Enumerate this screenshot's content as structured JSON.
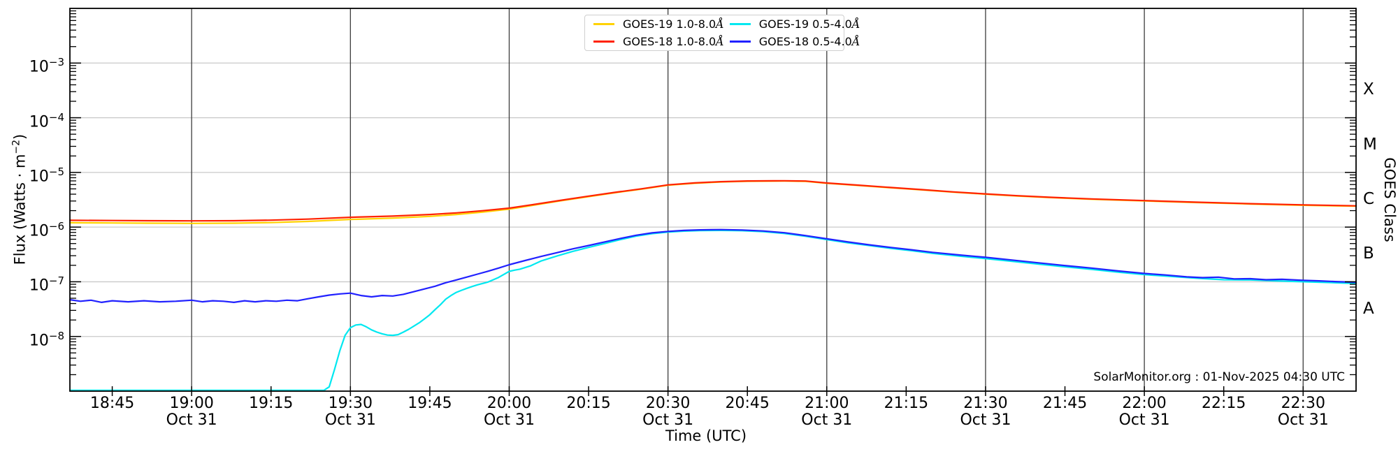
{
  "annotation": "SolarMonitor.org : 01-Nov-2025 04:30 UTC",
  "axes": {
    "xlabel": "Time (UTC)",
    "ylabel_left": {
      "pre": "Flux (Watts · m",
      "exp": "−2",
      "post": ")"
    },
    "ylabel_right": "GOES Class"
  },
  "legend": {
    "items": [
      {
        "label": "GOES-19 1.0-8.0Å",
        "color": "#ffd200"
      },
      {
        "label": "GOES-19 0.5-4.0Å",
        "color": "#00e8f0"
      },
      {
        "label": "GOES-18 1.0-8.0Å",
        "color": "#ff2200"
      },
      {
        "label": "GOES-18 0.5-4.0Å",
        "color": "#2121ff"
      }
    ]
  },
  "chart_data": {
    "type": "line",
    "x_axis": {
      "label": "Time (UTC)",
      "start_min": 1117,
      "end_min": 1360,
      "gridline_minutes": [
        1140,
        1170,
        1200,
        1230,
        1260,
        1290,
        1320,
        1350
      ],
      "ticks": [
        {
          "min": 1125,
          "label": "18:45",
          "sub": ""
        },
        {
          "min": 1140,
          "label": "19:00",
          "sub": "Oct 31"
        },
        {
          "min": 1155,
          "label": "19:15",
          "sub": ""
        },
        {
          "min": 1170,
          "label": "19:30",
          "sub": "Oct 31"
        },
        {
          "min": 1185,
          "label": "19:45",
          "sub": ""
        },
        {
          "min": 1200,
          "label": "20:00",
          "sub": "Oct 31"
        },
        {
          "min": 1215,
          "label": "20:15",
          "sub": ""
        },
        {
          "min": 1230,
          "label": "20:30",
          "sub": "Oct 31"
        },
        {
          "min": 1245,
          "label": "20:45",
          "sub": ""
        },
        {
          "min": 1260,
          "label": "21:00",
          "sub": "Oct 31"
        },
        {
          "min": 1275,
          "label": "21:15",
          "sub": ""
        },
        {
          "min": 1290,
          "label": "21:30",
          "sub": "Oct 31"
        },
        {
          "min": 1305,
          "label": "21:45",
          "sub": ""
        },
        {
          "min": 1320,
          "label": "22:00",
          "sub": "Oct 31"
        },
        {
          "min": 1335,
          "label": "22:15",
          "sub": ""
        },
        {
          "min": 1350,
          "label": "22:30",
          "sub": "Oct 31"
        }
      ]
    },
    "y_axis": {
      "label": "Flux (Watts · m⁻²)",
      "scale": "log",
      "top_exp": -2,
      "bottom_exp": -9,
      "ticks": [
        {
          "exp": -3,
          "label_exp": "−3"
        },
        {
          "exp": -4,
          "label_exp": "−4"
        },
        {
          "exp": -5,
          "label_exp": "−5"
        },
        {
          "exp": -6,
          "label_exp": "−6"
        },
        {
          "exp": -7,
          "label_exp": "−7"
        },
        {
          "exp": -8,
          "label_exp": "−8"
        }
      ]
    },
    "goes_classes": [
      {
        "label": "X",
        "exp": -3.5
      },
      {
        "label": "M",
        "exp": -4.5
      },
      {
        "label": "C",
        "exp": -5.5
      },
      {
        "label": "B",
        "exp": -6.5
      },
      {
        "label": "A",
        "exp": -7.5
      }
    ],
    "grid": {
      "vertical_color": "#3d3d3d",
      "horizontal_color": "#c9c9c9"
    },
    "series": [
      {
        "name": "GOES-19 1.0-8.0Å",
        "color": "#ffd200",
        "points": [
          [
            1117,
            1.2e-06
          ],
          [
            1125,
            1.19e-06
          ],
          [
            1132,
            1.18e-06
          ],
          [
            1140,
            1.17e-06
          ],
          [
            1148,
            1.18e-06
          ],
          [
            1155,
            1.21e-06
          ],
          [
            1162,
            1.27e-06
          ],
          [
            1170,
            1.38e-06
          ],
          [
            1178,
            1.46e-06
          ],
          [
            1185,
            1.57e-06
          ],
          [
            1190,
            1.7e-06
          ],
          [
            1195,
            1.88e-06
          ],
          [
            1200,
            2.13e-06
          ],
          [
            1205,
            2.55e-06
          ],
          [
            1210,
            3.05e-06
          ],
          [
            1215,
            3.61e-06
          ],
          [
            1220,
            4.25e-06
          ],
          [
            1225,
            4.95e-06
          ],
          [
            1230,
            5.84e-06
          ],
          [
            1235,
            6.34e-06
          ],
          [
            1240,
            6.7e-06
          ],
          [
            1245,
            6.89e-06
          ],
          [
            1250,
            6.94e-06
          ],
          [
            1252,
            6.95e-06
          ],
          [
            1256,
            6.87e-06
          ],
          [
            1260,
            6.33e-06
          ],
          [
            1266,
            5.78e-06
          ],
          [
            1272,
            5.24e-06
          ],
          [
            1278,
            4.79e-06
          ],
          [
            1284,
            4.35e-06
          ],
          [
            1290,
            4e-06
          ],
          [
            1296,
            3.7e-06
          ],
          [
            1302,
            3.47e-06
          ],
          [
            1310,
            3.23e-06
          ],
          [
            1320,
            3.01e-06
          ],
          [
            1330,
            2.81e-06
          ],
          [
            1340,
            2.64e-06
          ],
          [
            1350,
            2.51e-06
          ],
          [
            1360,
            2.41e-06
          ]
        ]
      },
      {
        "name": "GOES-18 1.0-8.0Å",
        "color": "#ff2200",
        "points": [
          [
            1117,
            1.33e-06
          ],
          [
            1125,
            1.32e-06
          ],
          [
            1132,
            1.31e-06
          ],
          [
            1140,
            1.3e-06
          ],
          [
            1148,
            1.31e-06
          ],
          [
            1155,
            1.34e-06
          ],
          [
            1162,
            1.4e-06
          ],
          [
            1170,
            1.51e-06
          ],
          [
            1178,
            1.59e-06
          ],
          [
            1185,
            1.7e-06
          ],
          [
            1190,
            1.82e-06
          ],
          [
            1195,
            1.99e-06
          ],
          [
            1200,
            2.22e-06
          ],
          [
            1205,
            2.62e-06
          ],
          [
            1210,
            3.12e-06
          ],
          [
            1215,
            3.68e-06
          ],
          [
            1220,
            4.32e-06
          ],
          [
            1225,
            5.02e-06
          ],
          [
            1230,
            5.92e-06
          ],
          [
            1235,
            6.42e-06
          ],
          [
            1240,
            6.78e-06
          ],
          [
            1245,
            6.97e-06
          ],
          [
            1250,
            7.02e-06
          ],
          [
            1252,
            7.03e-06
          ],
          [
            1256,
            6.95e-06
          ],
          [
            1260,
            6.4e-06
          ],
          [
            1266,
            5.85e-06
          ],
          [
            1272,
            5.3e-06
          ],
          [
            1278,
            4.85e-06
          ],
          [
            1284,
            4.4e-06
          ],
          [
            1290,
            4.05e-06
          ],
          [
            1296,
            3.75e-06
          ],
          [
            1302,
            3.52e-06
          ],
          [
            1310,
            3.28e-06
          ],
          [
            1320,
            3.05e-06
          ],
          [
            1330,
            2.85e-06
          ],
          [
            1340,
            2.68e-06
          ],
          [
            1350,
            2.55e-06
          ],
          [
            1360,
            2.45e-06
          ]
        ]
      },
      {
        "name": "GOES-19 0.5-4.0Å",
        "color": "#00e8f0",
        "points": [
          [
            1117,
            8e-10
          ],
          [
            1165,
            8e-10
          ],
          [
            1166,
            1.2e-09
          ],
          [
            1167,
            2.5e-09
          ],
          [
            1168,
            5.5e-09
          ],
          [
            1169,
            1.05e-08
          ],
          [
            1170,
            1.45e-08
          ],
          [
            1171,
            1.62e-08
          ],
          [
            1172,
            1.66e-08
          ],
          [
            1173,
            1.5e-08
          ],
          [
            1174,
            1.32e-08
          ],
          [
            1175,
            1.2e-08
          ],
          [
            1176,
            1.12e-08
          ],
          [
            1177,
            1.06e-08
          ],
          [
            1178,
            1.05e-08
          ],
          [
            1179,
            1.08e-08
          ],
          [
            1180,
            1.2e-08
          ],
          [
            1181,
            1.35e-08
          ],
          [
            1182,
            1.55e-08
          ],
          [
            1183,
            1.78e-08
          ],
          [
            1184,
            2.1e-08
          ],
          [
            1185,
            2.5e-08
          ],
          [
            1186,
            3.1e-08
          ],
          [
            1187,
            3.8e-08
          ],
          [
            1188,
            4.8e-08
          ],
          [
            1189,
            5.6e-08
          ],
          [
            1190,
            6.4e-08
          ],
          [
            1191,
            7e-08
          ],
          [
            1192,
            7.6e-08
          ],
          [
            1193,
            8.2e-08
          ],
          [
            1194,
            8.8e-08
          ],
          [
            1196,
            9.9e-08
          ],
          [
            1198,
            1.2e-07
          ],
          [
            1200,
            1.55e-07
          ],
          [
            1201,
            1.63e-07
          ],
          [
            1202,
            1.7e-07
          ],
          [
            1204,
            1.95e-07
          ],
          [
            1206,
            2.4e-07
          ],
          [
            1209,
            2.95e-07
          ],
          [
            1212,
            3.6e-07
          ],
          [
            1215,
            4.25e-07
          ],
          [
            1218,
            5e-07
          ],
          [
            1221,
            5.9e-07
          ],
          [
            1224,
            6.85e-07
          ],
          [
            1227,
            7.6e-07
          ],
          [
            1230,
            8.1e-07
          ],
          [
            1233,
            8.45e-07
          ],
          [
            1236,
            8.65e-07
          ],
          [
            1240,
            8.7e-07
          ],
          [
            1244,
            8.6e-07
          ],
          [
            1248,
            8.25e-07
          ],
          [
            1252,
            7.65e-07
          ],
          [
            1256,
            6.8e-07
          ],
          [
            1260,
            5.9e-07
          ],
          [
            1264,
            5.15e-07
          ],
          [
            1268,
            4.6e-07
          ],
          [
            1272,
            4.1e-07
          ],
          [
            1276,
            3.7e-07
          ],
          [
            1280,
            3.3e-07
          ],
          [
            1285,
            2.95e-07
          ],
          [
            1290,
            2.65e-07
          ],
          [
            1295,
            2.37e-07
          ],
          [
            1300,
            2.1e-07
          ],
          [
            1305,
            1.88e-07
          ],
          [
            1310,
            1.69e-07
          ],
          [
            1315,
            1.5e-07
          ],
          [
            1320,
            1.35e-07
          ],
          [
            1325,
            1.25e-07
          ],
          [
            1330,
            1.16e-07
          ],
          [
            1335,
            1.09e-07
          ],
          [
            1340,
            1.08e-07
          ],
          [
            1345,
            1.04e-07
          ],
          [
            1350,
            1e-07
          ],
          [
            1355,
            9.7e-08
          ],
          [
            1360,
            9.3e-08
          ]
        ]
      },
      {
        "name": "GOES-18 0.5-4.0Å",
        "color": "#2121ff",
        "points": [
          [
            1117,
            4.7e-08
          ],
          [
            1119,
            4.4e-08
          ],
          [
            1121,
            4.6e-08
          ],
          [
            1123,
            4.2e-08
          ],
          [
            1125,
            4.5e-08
          ],
          [
            1128,
            4.3e-08
          ],
          [
            1131,
            4.5e-08
          ],
          [
            1134,
            4.3e-08
          ],
          [
            1137,
            4.4e-08
          ],
          [
            1140,
            4.6e-08
          ],
          [
            1142,
            4.3e-08
          ],
          [
            1144,
            4.5e-08
          ],
          [
            1146,
            4.4e-08
          ],
          [
            1148,
            4.2e-08
          ],
          [
            1150,
            4.5e-08
          ],
          [
            1152,
            4.3e-08
          ],
          [
            1154,
            4.5e-08
          ],
          [
            1156,
            4.4e-08
          ],
          [
            1158,
            4.6e-08
          ],
          [
            1160,
            4.5e-08
          ],
          [
            1162,
            4.9e-08
          ],
          [
            1164,
            5.3e-08
          ],
          [
            1166,
            5.7e-08
          ],
          [
            1168,
            6e-08
          ],
          [
            1170,
            6.2e-08
          ],
          [
            1172,
            5.6e-08
          ],
          [
            1174,
            5.3e-08
          ],
          [
            1176,
            5.6e-08
          ],
          [
            1178,
            5.5e-08
          ],
          [
            1180,
            5.9e-08
          ],
          [
            1182,
            6.6e-08
          ],
          [
            1184,
            7.4e-08
          ],
          [
            1186,
            8.3e-08
          ],
          [
            1188,
            9.6e-08
          ],
          [
            1190,
            1.08e-07
          ],
          [
            1192,
            1.22e-07
          ],
          [
            1194,
            1.38e-07
          ],
          [
            1196,
            1.56e-07
          ],
          [
            1198,
            1.78e-07
          ],
          [
            1200,
            2.05e-07
          ],
          [
            1203,
            2.45e-07
          ],
          [
            1206,
            2.9e-07
          ],
          [
            1209,
            3.4e-07
          ],
          [
            1212,
            4e-07
          ],
          [
            1215,
            4.6e-07
          ],
          [
            1218,
            5.35e-07
          ],
          [
            1221,
            6.2e-07
          ],
          [
            1224,
            7.1e-07
          ],
          [
            1227,
            7.85e-07
          ],
          [
            1230,
            8.35e-07
          ],
          [
            1233,
            8.7e-07
          ],
          [
            1236,
            8.9e-07
          ],
          [
            1240,
            9e-07
          ],
          [
            1244,
            8.85e-07
          ],
          [
            1248,
            8.5e-07
          ],
          [
            1252,
            7.9e-07
          ],
          [
            1256,
            7e-07
          ],
          [
            1260,
            6.1e-07
          ],
          [
            1264,
            5.35e-07
          ],
          [
            1268,
            4.75e-07
          ],
          [
            1272,
            4.25e-07
          ],
          [
            1276,
            3.85e-07
          ],
          [
            1280,
            3.45e-07
          ],
          [
            1285,
            3.1e-07
          ],
          [
            1290,
            2.8e-07
          ],
          [
            1295,
            2.5e-07
          ],
          [
            1300,
            2.22e-07
          ],
          [
            1305,
            1.98e-07
          ],
          [
            1310,
            1.78e-07
          ],
          [
            1315,
            1.58e-07
          ],
          [
            1320,
            1.42e-07
          ],
          [
            1324,
            1.33e-07
          ],
          [
            1328,
            1.23e-07
          ],
          [
            1331,
            1.19e-07
          ],
          [
            1334,
            1.21e-07
          ],
          [
            1337,
            1.13e-07
          ],
          [
            1340,
            1.14e-07
          ],
          [
            1343,
            1.09e-07
          ],
          [
            1346,
            1.11e-07
          ],
          [
            1350,
            1.06e-07
          ],
          [
            1353,
            1.04e-07
          ],
          [
            1356,
            1.01e-07
          ],
          [
            1360,
            9.8e-08
          ]
        ]
      }
    ]
  }
}
